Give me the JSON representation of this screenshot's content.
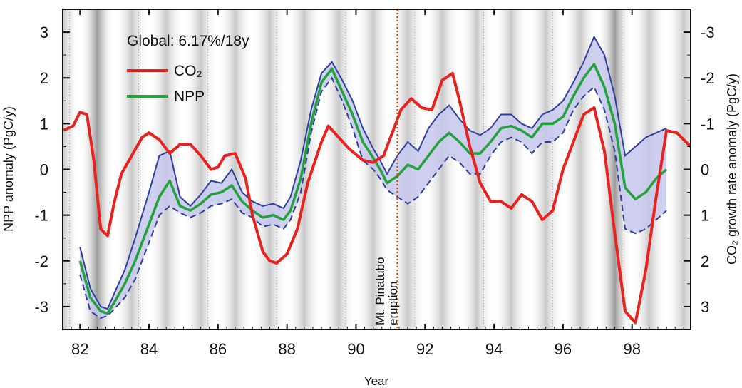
{
  "chart_data": {
    "type": "line",
    "xlabel": "Year",
    "ylabel_left": "NPP anomaly (PgC/y)",
    "ylabel_right": "CO₂ growth rate anomaly (PgC/y)",
    "annotation": "Global: 6.17%/18y",
    "event_label_line1": "Mt. Pinatubo",
    "event_label_line2": "eruption",
    "event_year": 91.2,
    "xlim": [
      81.5,
      99.7
    ],
    "ylim": [
      -3.5,
      3.5
    ],
    "right_axis_inverted": true,
    "x_ticks": [
      82,
      84,
      86,
      88,
      90,
      92,
      94,
      96,
      98
    ],
    "x_tick_labels": [
      "82",
      "84",
      "86",
      "88",
      "90",
      "92",
      "94",
      "96",
      "98"
    ],
    "y_ticks": [
      3,
      2,
      1,
      0,
      -1,
      -2,
      -3
    ],
    "y_tick_labels_left": [
      "3",
      "2",
      "1",
      "0",
      "-1",
      "-2",
      "-3"
    ],
    "y_tick_labels_right": [
      "-3",
      "-2",
      "-1",
      "0",
      "1",
      "2",
      "3"
    ],
    "legend": [
      {
        "label": "CO₂",
        "color": "#e8231f"
      },
      {
        "label": "NPP",
        "color": "#22a23a"
      }
    ],
    "colors": {
      "co2": "#e8231f",
      "npp": "#22a23a",
      "band_fill": "#c7c7ec",
      "band_edge": "#2f3f9e",
      "event": "#b35a1f"
    },
    "series": [
      {
        "name": "CO₂",
        "x": [
          81.5,
          81.8,
          82.0,
          82.2,
          82.4,
          82.6,
          82.8,
          83.0,
          83.2,
          83.5,
          83.8,
          84.0,
          84.3,
          84.6,
          84.9,
          85.2,
          85.5,
          85.8,
          86.0,
          86.2,
          86.5,
          86.8,
          87.0,
          87.3,
          87.5,
          87.7,
          88.0,
          88.3,
          88.6,
          89.0,
          89.2,
          89.5,
          89.8,
          90.2,
          90.5,
          90.8,
          91.0,
          91.3,
          91.6,
          91.9,
          92.2,
          92.5,
          92.8,
          93.0,
          93.3,
          93.6,
          93.9,
          94.2,
          94.5,
          94.8,
          95.1,
          95.4,
          95.7,
          96.0,
          96.3,
          96.6,
          96.9,
          97.2,
          97.5,
          97.8,
          98.1,
          98.4,
          98.7,
          99.0,
          99.3,
          99.7
        ],
        "y": [
          0.85,
          0.95,
          1.25,
          1.2,
          0.2,
          -1.3,
          -1.45,
          -0.7,
          -0.1,
          0.3,
          0.7,
          0.8,
          0.65,
          0.35,
          0.55,
          0.55,
          0.3,
          0.0,
          0.05,
          0.3,
          0.35,
          -0.2,
          -1.0,
          -1.8,
          -2.0,
          -2.05,
          -1.85,
          -1.3,
          -0.3,
          0.6,
          0.95,
          0.7,
          0.45,
          0.2,
          0.15,
          0.3,
          0.7,
          1.3,
          1.55,
          1.35,
          1.3,
          1.95,
          2.1,
          1.5,
          0.5,
          -0.3,
          -0.7,
          -0.7,
          -0.85,
          -0.55,
          -0.7,
          -1.1,
          -0.9,
          0.0,
          0.6,
          1.2,
          1.35,
          0.4,
          -1.4,
          -3.1,
          -3.35,
          -2.2,
          -0.6,
          0.85,
          0.8,
          0.5
        ]
      },
      {
        "name": "NPP",
        "x": [
          82.0,
          82.3,
          82.6,
          82.8,
          83.0,
          83.3,
          83.6,
          84.0,
          84.3,
          84.6,
          84.9,
          85.2,
          85.5,
          85.8,
          86.1,
          86.4,
          86.7,
          87.0,
          87.3,
          87.6,
          87.9,
          88.1,
          88.4,
          88.7,
          89.0,
          89.3,
          89.6,
          89.9,
          90.2,
          90.5,
          90.7,
          90.9,
          91.2,
          91.5,
          91.8,
          92.1,
          92.4,
          92.7,
          93.0,
          93.3,
          93.6,
          93.9,
          94.2,
          94.5,
          94.8,
          95.1,
          95.4,
          95.7,
          96.0,
          96.3,
          96.6,
          96.9,
          97.2,
          97.5,
          97.8,
          98.1,
          98.4,
          98.7,
          99.0
        ],
        "y": [
          -2.0,
          -2.8,
          -3.1,
          -3.15,
          -2.9,
          -2.5,
          -2.0,
          -1.2,
          -0.6,
          -0.25,
          -0.8,
          -0.9,
          -0.75,
          -0.55,
          -0.5,
          -0.35,
          -0.7,
          -0.9,
          -1.05,
          -1.0,
          -1.1,
          -0.9,
          -0.2,
          1.0,
          1.9,
          2.2,
          1.7,
          1.2,
          0.6,
          0.25,
          0.0,
          -0.3,
          -0.15,
          0.1,
          0.0,
          0.3,
          0.6,
          0.8,
          0.6,
          0.35,
          0.35,
          0.6,
          0.9,
          0.95,
          0.85,
          0.7,
          1.0,
          1.0,
          1.15,
          1.6,
          2.0,
          2.3,
          1.8,
          1.0,
          -0.4,
          -0.65,
          -0.5,
          -0.2,
          0.0
        ]
      },
      {
        "name": "NPP upper",
        "x": [
          82.0,
          82.3,
          82.6,
          82.8,
          83.0,
          83.3,
          83.6,
          84.0,
          84.3,
          84.6,
          84.9,
          85.2,
          85.5,
          85.8,
          86.1,
          86.4,
          86.7,
          87.0,
          87.3,
          87.6,
          87.9,
          88.1,
          88.4,
          88.7,
          89.0,
          89.3,
          89.6,
          89.9,
          90.2,
          90.5,
          90.7,
          90.9,
          91.2,
          91.5,
          91.8,
          92.1,
          92.4,
          92.7,
          93.0,
          93.3,
          93.6,
          93.9,
          94.2,
          94.5,
          94.8,
          95.1,
          95.4,
          95.7,
          96.0,
          96.3,
          96.6,
          96.9,
          97.2,
          97.5,
          97.8,
          98.1,
          98.4,
          98.7,
          99.0
        ],
        "y": [
          -1.7,
          -2.6,
          -3.0,
          -3.05,
          -2.7,
          -2.2,
          -1.5,
          -0.5,
          0.3,
          0.4,
          -0.6,
          -0.8,
          -0.55,
          -0.25,
          -0.3,
          0.0,
          -0.5,
          -0.7,
          -0.8,
          -0.75,
          -0.85,
          -0.6,
          0.2,
          1.3,
          2.1,
          2.35,
          1.95,
          1.5,
          0.9,
          0.45,
          0.2,
          -0.1,
          0.3,
          0.6,
          0.4,
          0.9,
          1.2,
          1.4,
          1.1,
          0.85,
          0.75,
          0.9,
          1.2,
          1.2,
          1.0,
          0.9,
          1.2,
          1.3,
          1.5,
          1.9,
          2.35,
          2.9,
          2.5,
          1.6,
          0.3,
          0.5,
          0.7,
          0.8,
          0.9
        ]
      },
      {
        "name": "NPP lower",
        "x": [
          82.0,
          82.3,
          82.6,
          82.8,
          83.0,
          83.3,
          83.6,
          84.0,
          84.3,
          84.6,
          84.9,
          85.2,
          85.5,
          85.8,
          86.1,
          86.4,
          86.7,
          87.0,
          87.3,
          87.6,
          87.9,
          88.1,
          88.4,
          88.7,
          89.0,
          89.3,
          89.6,
          89.9,
          90.2,
          90.5,
          90.7,
          90.9,
          91.2,
          91.5,
          91.8,
          92.1,
          92.4,
          92.7,
          93.0,
          93.3,
          93.6,
          93.9,
          94.2,
          94.5,
          94.8,
          95.1,
          95.4,
          95.7,
          96.0,
          96.3,
          96.6,
          96.9,
          97.2,
          97.5,
          97.8,
          98.1,
          98.4,
          98.7,
          99.0
        ],
        "y": [
          -2.3,
          -3.1,
          -3.25,
          -3.2,
          -3.05,
          -2.8,
          -2.4,
          -1.6,
          -1.0,
          -0.8,
          -0.95,
          -1.05,
          -0.95,
          -0.8,
          -0.75,
          -0.65,
          -0.95,
          -1.05,
          -1.25,
          -1.2,
          -1.3,
          -1.1,
          -0.5,
          0.8,
          1.7,
          2.0,
          1.5,
          0.9,
          0.2,
          0.0,
          -0.2,
          -0.45,
          -0.6,
          -0.75,
          -0.6,
          -0.3,
          0.0,
          0.3,
          0.15,
          -0.1,
          -0.1,
          0.3,
          0.6,
          0.7,
          0.6,
          0.35,
          0.6,
          0.6,
          0.8,
          1.3,
          1.6,
          1.8,
          1.3,
          0.4,
          -1.3,
          -1.4,
          -1.3,
          -1.1,
          -0.9
        ]
      }
    ]
  }
}
